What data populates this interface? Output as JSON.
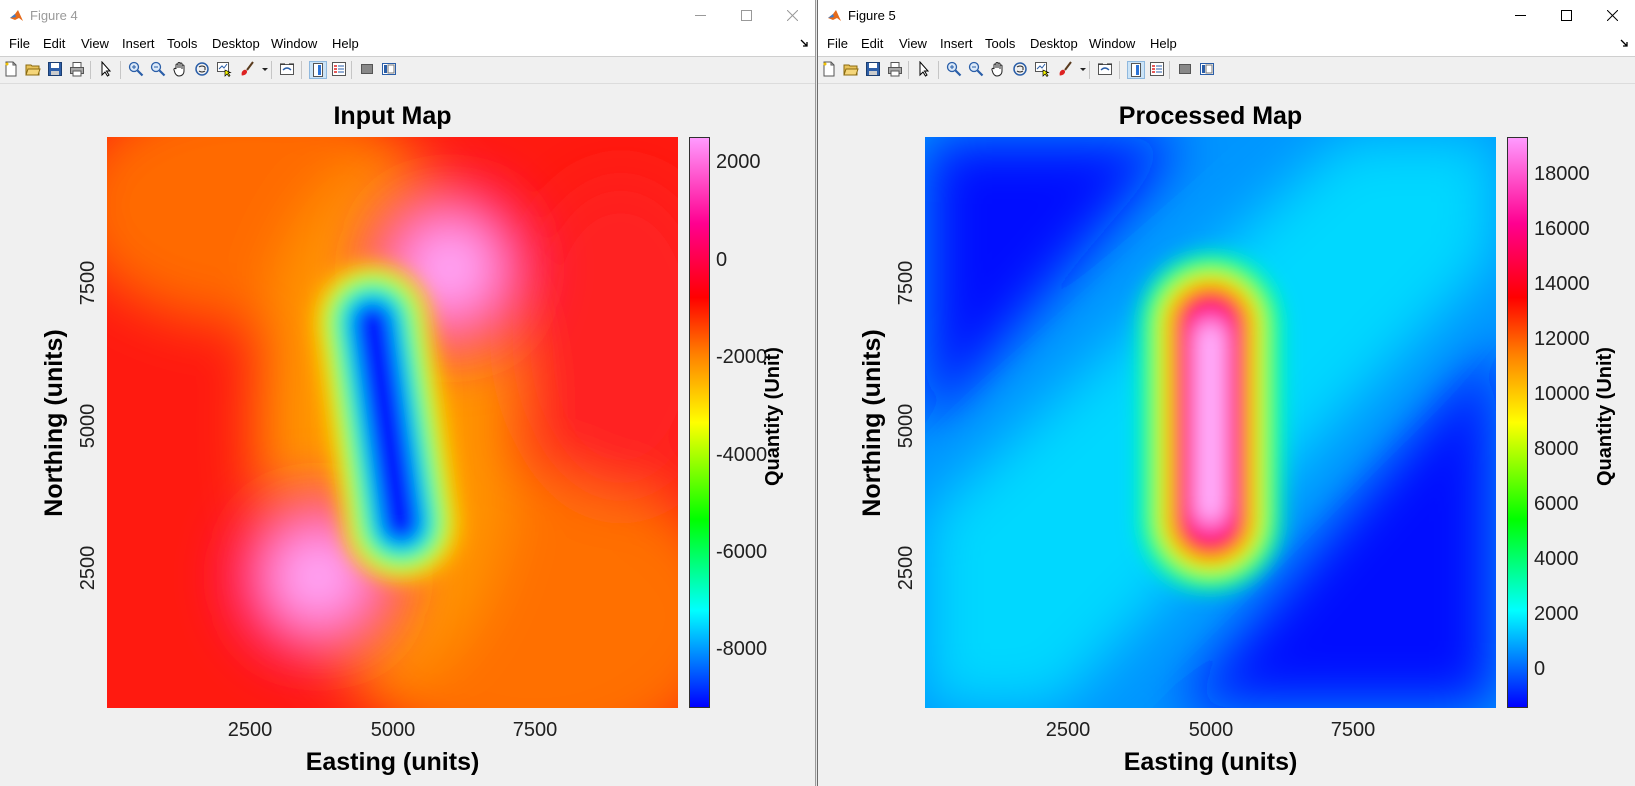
{
  "window4": {
    "title": "Figure 4",
    "menu": [
      "File",
      "Edit",
      "View",
      "Insert",
      "Tools",
      "Desktop",
      "Window",
      "Help"
    ],
    "plot": {
      "title": "Input Map",
      "xlabel": "Easting (units)",
      "ylabel": "Northing (units)",
      "colorbar_label": "Quantity (Unit)",
      "x_ticks": [
        "2500",
        "5000",
        "7500"
      ],
      "y_ticks": [
        "2500",
        "5000",
        "7500"
      ],
      "colorbar_ticks": [
        "2000",
        "0",
        "-2000",
        "-4000",
        "-6000",
        "-8000"
      ]
    }
  },
  "window5": {
    "title": "Figure 5",
    "menu": [
      "File",
      "Edit",
      "View",
      "Insert",
      "Tools",
      "Desktop",
      "Window",
      "Help"
    ],
    "plot": {
      "title": "Processed Map",
      "xlabel": "Easting (units)",
      "ylabel": "Northing (units)",
      "colorbar_label": "Quantity (Unit)",
      "x_ticks": [
        "2500",
        "5000",
        "7500"
      ],
      "y_ticks": [
        "2500",
        "5000",
        "7500"
      ],
      "colorbar_ticks": [
        "18000",
        "16000",
        "14000",
        "12000",
        "10000",
        "8000",
        "6000",
        "4000",
        "2000",
        "0"
      ]
    }
  },
  "toolbar_icons": [
    "new-file-icon",
    "open-file-icon",
    "save-icon",
    "print-icon",
    "edit-plot-icon",
    "zoom-in-icon",
    "zoom-out-icon",
    "pan-icon",
    "rotate-3d-icon",
    "data-cursor-icon",
    "brush-icon",
    "brush-dropdown-icon",
    "link-plot-icon",
    "insert-colorbar-icon",
    "insert-legend-icon",
    "hide-plot-tools-icon",
    "show-plot-tools-icon"
  ],
  "chart_data": [
    {
      "type": "heatmap",
      "title": "Input Map",
      "xlabel": "Easting (units)",
      "ylabel": "Northing (units)",
      "xlim": [
        0,
        10000
      ],
      "ylim": [
        0,
        10000
      ],
      "colorbar": {
        "label": "Quantity (Unit)",
        "range": [
          -9200,
          2500
        ],
        "colormap": "hsv-like (blue-cyan-green-yellow-red-magenta)"
      },
      "features": [
        {
          "kind": "elongated-low",
          "center": [
            4900,
            5000
          ],
          "length_northing": 5200,
          "min_value": -9000
        },
        {
          "kind": "high",
          "center": [
            3700,
            2300
          ],
          "max_value": 2500
        },
        {
          "kind": "high",
          "center": [
            6000,
            7700
          ],
          "max_value": 2500
        }
      ],
      "background_value": 0
    },
    {
      "type": "heatmap",
      "title": "Processed Map",
      "xlabel": "Easting (units)",
      "ylabel": "Northing (units)",
      "xlim": [
        0,
        10000
      ],
      "ylim": [
        0,
        10000
      ],
      "colorbar": {
        "label": "Quantity (Unit)",
        "range": [
          -1500,
          19500
        ],
        "colormap": "hsv-like (blue-cyan-green-yellow-red-magenta)"
      },
      "features": [
        {
          "kind": "elongated-high",
          "center": [
            5000,
            5000
          ],
          "length_northing": 5200,
          "max_value": 19000
        }
      ],
      "background_value": 1000
    }
  ]
}
